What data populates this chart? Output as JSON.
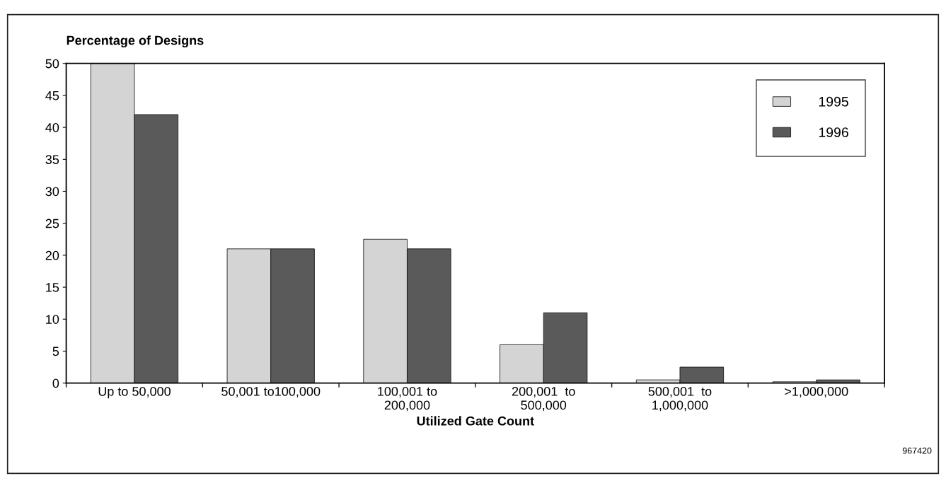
{
  "chart_data": {
    "type": "bar",
    "ylabel": "Percentage of Designs",
    "xlabel": "Utilized Gate Count",
    "categories": [
      "Up to 50,000",
      "50,001 to100,000",
      "100,001 to\n200,000",
      "200,001  to\n500,000",
      "500,001  to\n1,000,000",
      ">1,000,000"
    ],
    "series": [
      {
        "name": "1995",
        "color": "#d4d4d4",
        "values": [
          50,
          21,
          22.5,
          6,
          0.5,
          0.2
        ]
      },
      {
        "name": "1996",
        "color": "#5a5a5a",
        "values": [
          42,
          21,
          21,
          11,
          2.5,
          0.5
        ]
      }
    ],
    "ylim": [
      0,
      50
    ],
    "yticks": [
      0,
      5,
      10,
      15,
      20,
      25,
      30,
      35,
      40,
      45,
      50
    ],
    "grid": false,
    "legend": "top right",
    "annotations": [
      "967420"
    ]
  }
}
